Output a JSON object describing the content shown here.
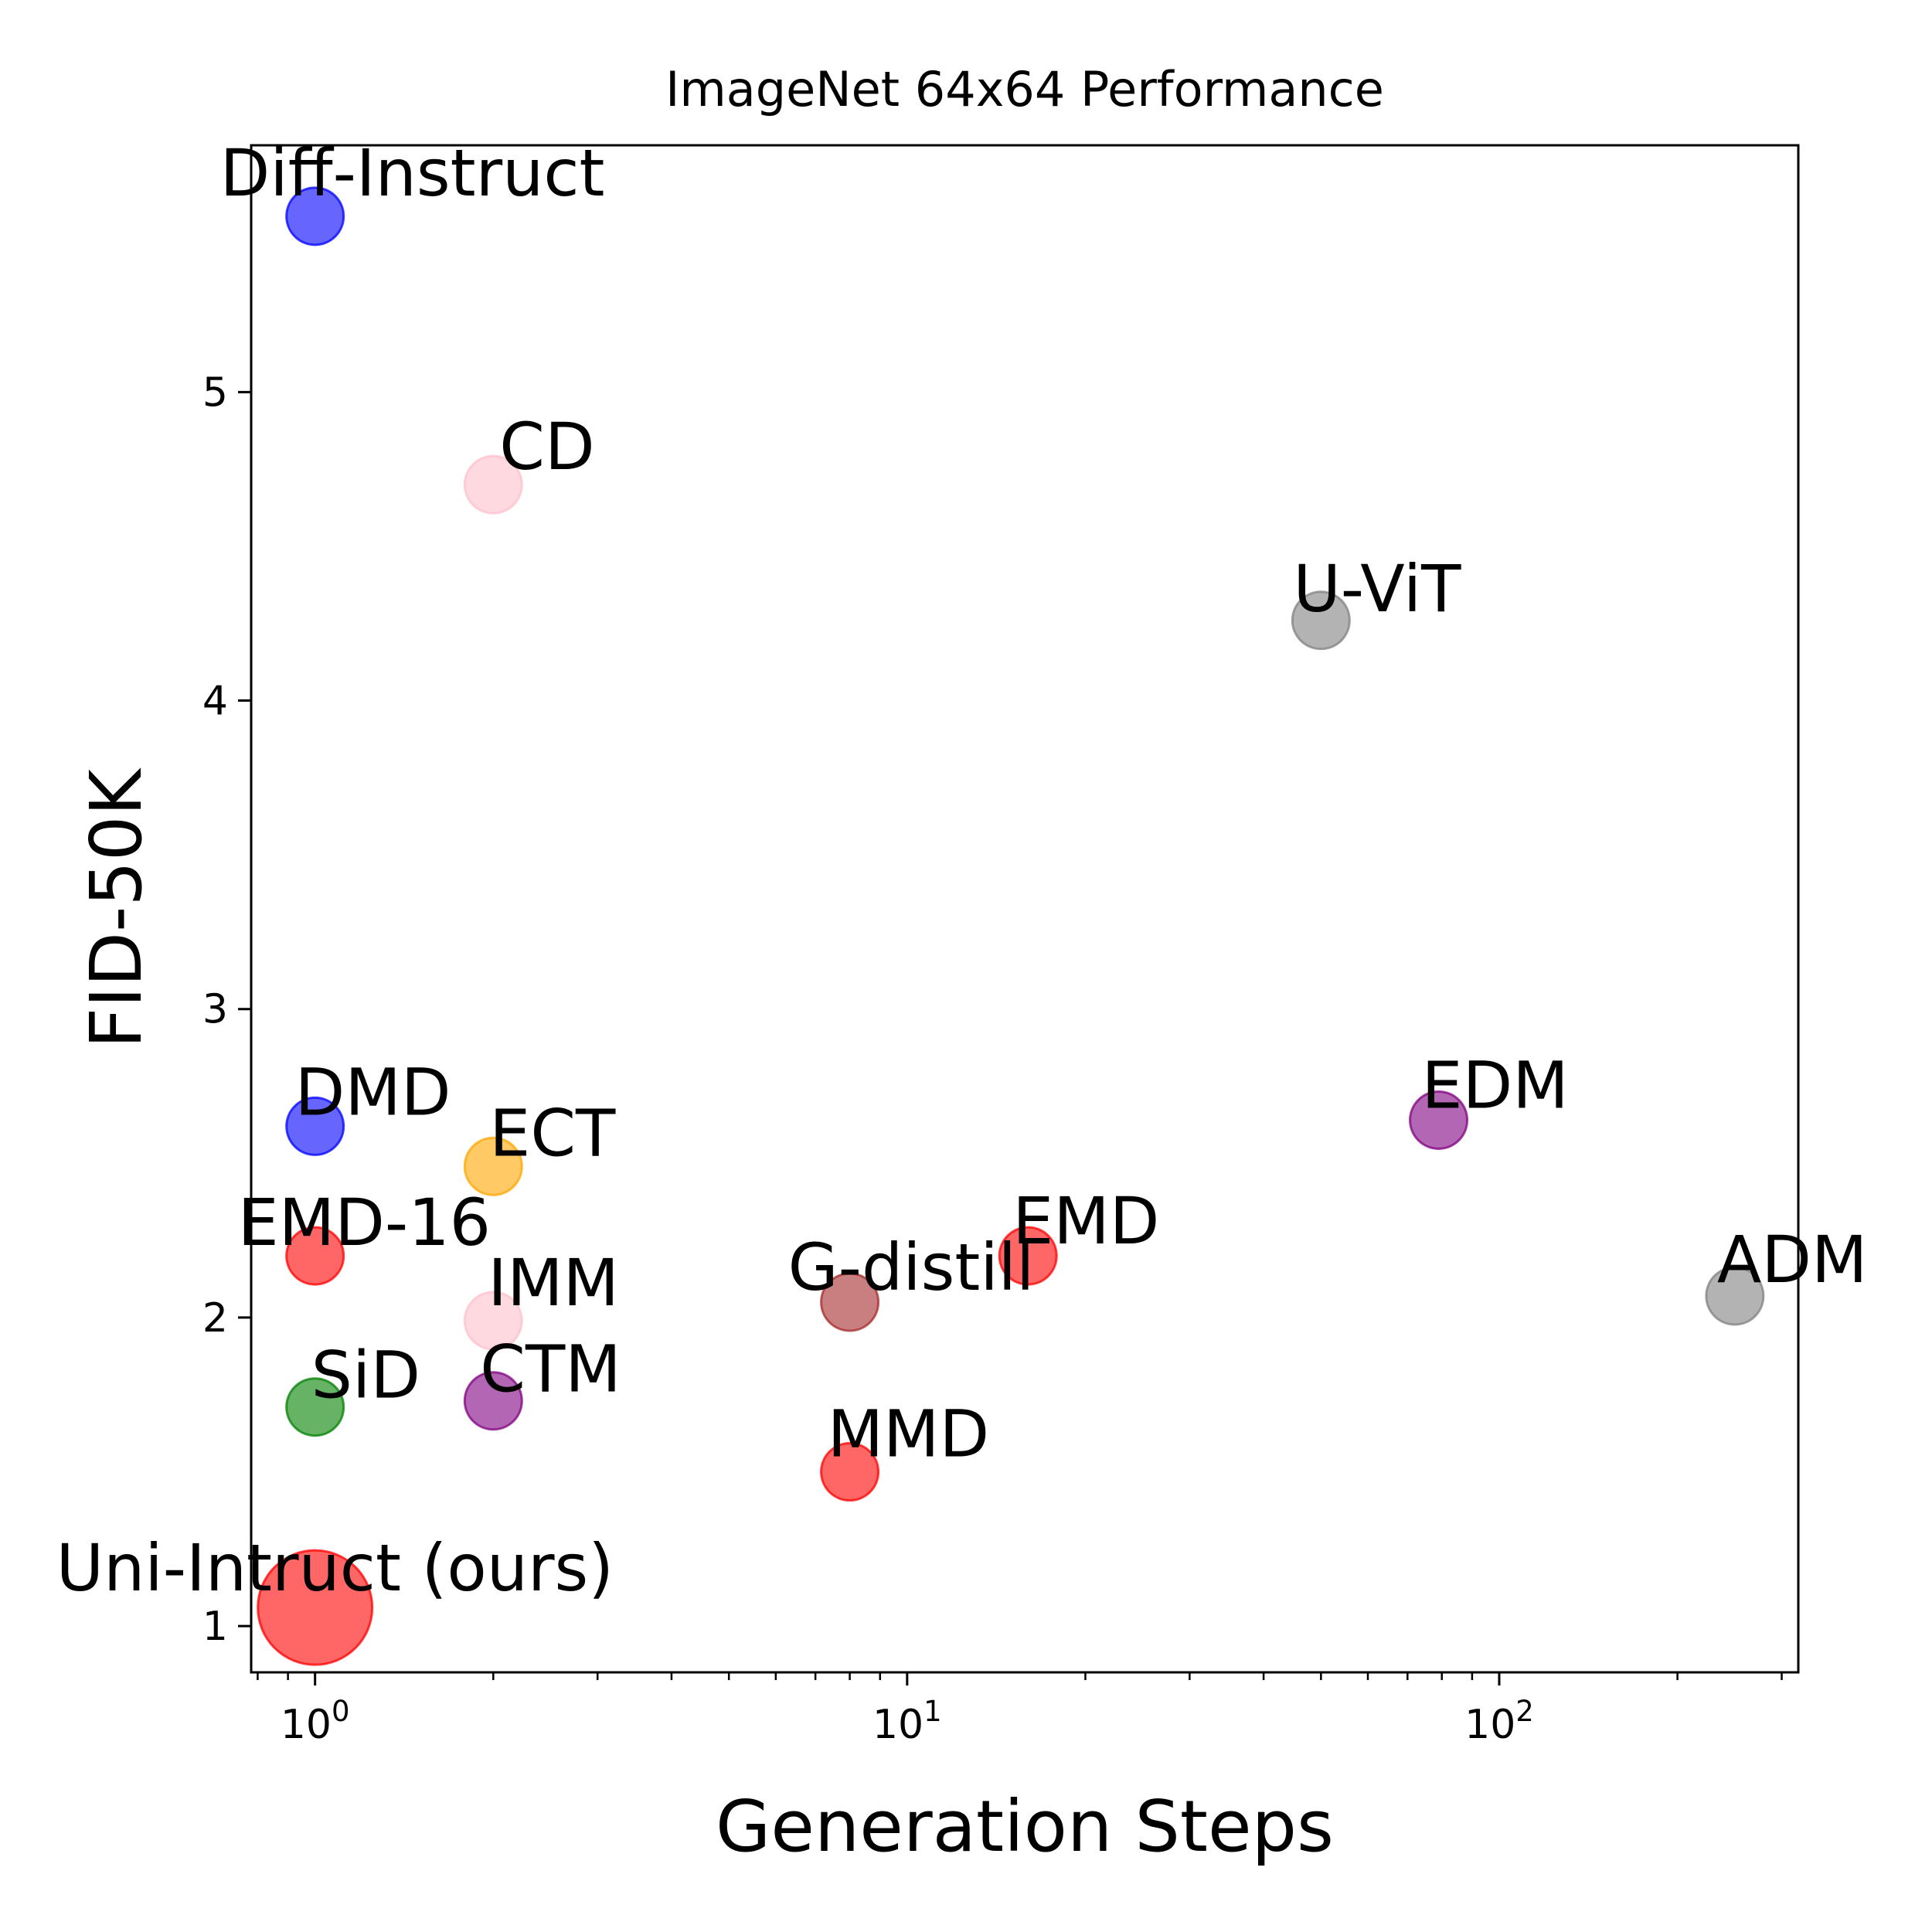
{
  "chart_data": {
    "type": "scatter",
    "title": "ImageNet 64x64 Performance",
    "xlabel": "Generation Steps",
    "ylabel": "FID-50K",
    "xscale": "log",
    "xlim": [
      0.78,
      320
    ],
    "ylim": [
      0.85,
      5.8
    ],
    "xticks": [
      {
        "value": 1,
        "base": "10",
        "exp": "0"
      },
      {
        "value": 10,
        "base": "10",
        "exp": "1"
      },
      {
        "value": 100,
        "base": "10",
        "exp": "2"
      }
    ],
    "yticks": [
      {
        "value": 1,
        "label": "1"
      },
      {
        "value": 2,
        "label": "2"
      },
      {
        "value": 3,
        "label": "3"
      },
      {
        "value": 4,
        "label": "4"
      },
      {
        "value": 5,
        "label": "5"
      }
    ],
    "points": [
      {
        "label": "Diff-Instruct",
        "x": 1,
        "y": 5.57,
        "color": "#0000ff",
        "size": 1,
        "label_pos": "above-center"
      },
      {
        "label": "CD",
        "x": 2,
        "y": 4.7,
        "color": "#ffc0cb",
        "size": 1,
        "label_pos": "upper-right"
      },
      {
        "label": "U-ViT",
        "x": 50,
        "y": 4.26,
        "color": "#808080",
        "size": 1,
        "label_pos": "upper-center"
      },
      {
        "label": "DMD",
        "x": 1,
        "y": 2.62,
        "color": "#0000ff",
        "size": 1,
        "label_pos": "upper-right"
      },
      {
        "label": "ECT",
        "x": 2,
        "y": 2.49,
        "color": "#ffa500",
        "size": 1,
        "label_pos": "upper-center"
      },
      {
        "label": "EDM",
        "x": 79,
        "y": 2.64,
        "color": "#800080",
        "size": 1,
        "label_pos": "upper-center"
      },
      {
        "label": "EMD-16",
        "x": 1,
        "y": 2.2,
        "color": "#ff0000",
        "size": 1,
        "label_pos": "upper-center"
      },
      {
        "label": "EMD",
        "x": 16,
        "y": 2.2,
        "color": "#ff0000",
        "size": 1,
        "label_pos": "upper-center"
      },
      {
        "label": "G-distill",
        "x": 8,
        "y": 2.05,
        "color": "#a52a2a",
        "size": 1,
        "label_pos": "upper-center"
      },
      {
        "label": "ADM",
        "x": 250,
        "y": 2.07,
        "color": "#808080",
        "size": 1,
        "label_pos": "upper-center"
      },
      {
        "label": "IMM",
        "x": 2,
        "y": 1.99,
        "color": "#ffc0cb",
        "size": 1,
        "label_pos": "upper-center"
      },
      {
        "label": "SiD",
        "x": 1,
        "y": 1.71,
        "color": "#008000",
        "size": 1,
        "label_pos": "upper-right"
      },
      {
        "label": "CTM",
        "x": 2,
        "y": 1.73,
        "color": "#800080",
        "size": 1,
        "label_pos": "upper-center"
      },
      {
        "label": "MMD",
        "x": 8,
        "y": 1.5,
        "color": "#ff0000",
        "size": 1,
        "label_pos": "upper-center"
      },
      {
        "label": "Uni-Intruct (ours)",
        "x": 1,
        "y": 1.06,
        "color": "#ff0000",
        "size": 4,
        "label_pos": "upper-center"
      }
    ],
    "alpha": 0.6,
    "grid": false,
    "legend": "none"
  }
}
